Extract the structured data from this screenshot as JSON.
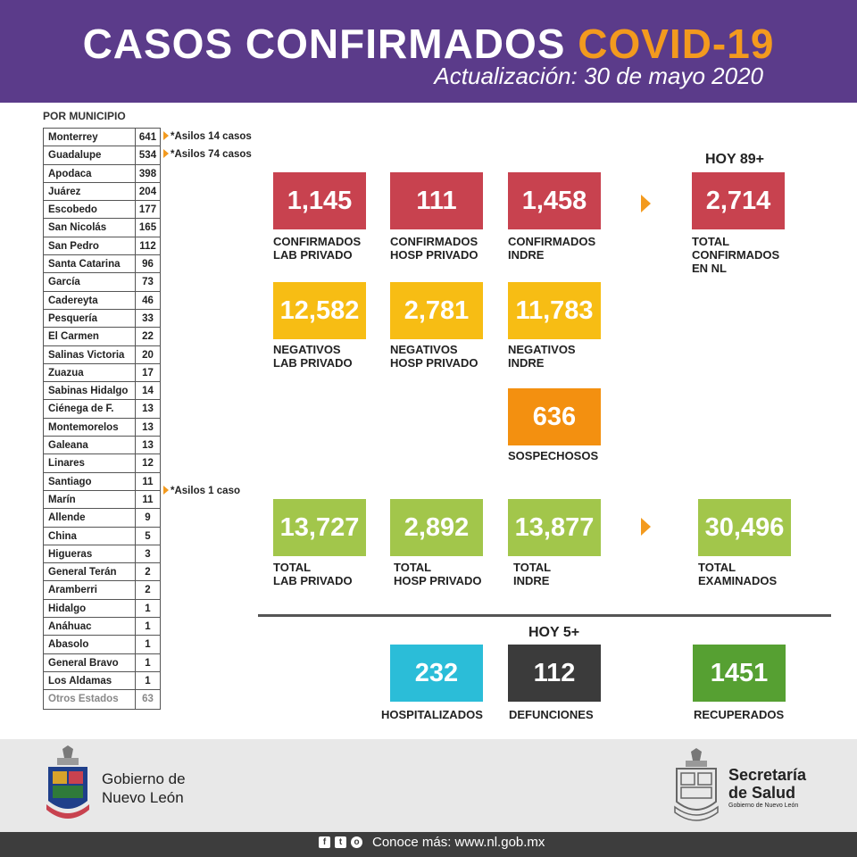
{
  "header": {
    "title_main": "CASOS CONFIRMADOS",
    "title_accent": "COVID-19",
    "subtitle": "Actualización: 30 de mayo 2020"
  },
  "municipios": {
    "heading": "POR MUNICIPIO",
    "rows": [
      {
        "name": "Monterrey",
        "value": "641"
      },
      {
        "name": "Guadalupe",
        "value": "534"
      },
      {
        "name": "Apodaca",
        "value": "398"
      },
      {
        "name": "Juárez",
        "value": "204"
      },
      {
        "name": "Escobedo",
        "value": "177"
      },
      {
        "name": "San Nicolás",
        "value": "165"
      },
      {
        "name": "San Pedro",
        "value": "112"
      },
      {
        "name": "Santa Catarina",
        "value": "96"
      },
      {
        "name": "García",
        "value": "73"
      },
      {
        "name": "Cadereyta",
        "value": "46"
      },
      {
        "name": "Pesquería",
        "value": "33"
      },
      {
        "name": "El Carmen",
        "value": "22"
      },
      {
        "name": "Salinas Victoria",
        "value": "20"
      },
      {
        "name": "Zuazua",
        "value": "17"
      },
      {
        "name": "Sabinas Hidalgo",
        "value": "14"
      },
      {
        "name": "Ciénega de F.",
        "value": "13"
      },
      {
        "name": "Montemorelos",
        "value": "13"
      },
      {
        "name": "Galeana",
        "value": "13"
      },
      {
        "name": "Linares",
        "value": "12"
      },
      {
        "name": "Santiago",
        "value": "11"
      },
      {
        "name": "Marín",
        "value": "11"
      },
      {
        "name": "Allende",
        "value": "9"
      },
      {
        "name": "China",
        "value": "5"
      },
      {
        "name": "Higueras",
        "value": "3"
      },
      {
        "name": "General Terán",
        "value": "2"
      },
      {
        "name": "Aramberri",
        "value": "2"
      },
      {
        "name": "Hidalgo",
        "value": "1"
      },
      {
        "name": "Anáhuac",
        "value": "1"
      },
      {
        "name": "Abasolo",
        "value": "1"
      },
      {
        "name": "General Bravo",
        "value": "1"
      },
      {
        "name": "Los Aldamas",
        "value": "1"
      },
      {
        "name": "Otros Estados",
        "value": "63"
      }
    ],
    "notes": [
      "*Asilos 14 casos",
      "*Asilos 74 casos",
      "*Asilos 1 caso"
    ]
  },
  "stats": {
    "hoy_confirmados": "HOY 89+",
    "confirmados_lab_privado": {
      "value": "1,145",
      "label1": "CONFIRMADOS",
      "label2": "LAB PRIVADO"
    },
    "confirmados_hosp_privado": {
      "value": "111",
      "label1": "CONFIRMADOS",
      "label2": "HOSP PRIVADO"
    },
    "confirmados_indre": {
      "value": "1,458",
      "label1": "CONFIRMADOS",
      "label2": "INDRE"
    },
    "total_confirmados": {
      "value": "2,714",
      "label1": "TOTAL",
      "label2": "CONFIRMADOS",
      "label3": "EN NL"
    },
    "negativos_lab_privado": {
      "value": "12,582",
      "label1": "NEGATIVOS",
      "label2": "LAB PRIVADO"
    },
    "negativos_hosp_privado": {
      "value": "2,781",
      "label1": "NEGATIVOS",
      "label2": "HOSP PRIVADO"
    },
    "negativos_indre": {
      "value": "11,783",
      "label1": "NEGATIVOS",
      "label2": "INDRE"
    },
    "sospechosos": {
      "value": "636",
      "label1": "SOSPECHOSOS"
    },
    "total_lab_privado": {
      "value": "13,727",
      "label1": "TOTAL",
      "label2": "LAB PRIVADO"
    },
    "total_hosp_privado": {
      "value": "2,892",
      "label1": "TOTAL",
      "label2": "HOSP PRIVADO"
    },
    "total_indre": {
      "value": "13,877",
      "label1": "TOTAL",
      "label2": "INDRE"
    },
    "total_examinados": {
      "value": "30,496",
      "label1": "TOTAL",
      "label2": "EXAMINADOS"
    },
    "hoy_defunciones": "HOY 5+",
    "hospitalizados": {
      "value": "232",
      "label1": "HOSPITALIZADOS"
    },
    "defunciones": {
      "value": "112",
      "label1": "DEFUNCIONES"
    },
    "recuperados": {
      "value": "1451",
      "label1": "RECUPERADOS"
    }
  },
  "footer": {
    "gov_line1": "Gobierno de",
    "gov_line2": "Nuevo León",
    "salud_line1": "Secretaría",
    "salud_line2": "de Salud",
    "salud_small": "Gobierno de Nuevo León",
    "more": "Conoce más: www.nl.gob.mx"
  },
  "colors": {
    "header": "#5b3b8a",
    "accent": "#f39a1e",
    "red": "#c8424f",
    "yellow": "#f7bd14",
    "orange": "#f39010",
    "green": "#a2c64b",
    "cyan": "#2bbdd8",
    "dark": "#3b3b3b",
    "dark_green": "#56a032"
  },
  "icons": [
    "facebook-icon",
    "twitter-icon",
    "instagram-icon",
    "arrow-right-icon"
  ]
}
